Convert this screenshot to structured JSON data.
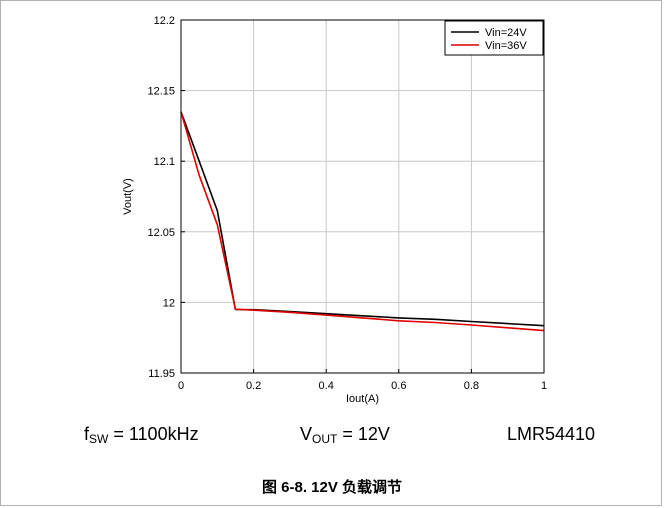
{
  "captions": {
    "fsw": {
      "symbol": "f",
      "sub": "SW",
      "value": " = 1100kHz"
    },
    "vout": {
      "symbol": "V",
      "sub": "OUT",
      "value": " = 12V"
    },
    "part": "LMR54410"
  },
  "figure_title": "图 6-8. 12V 负载调节",
  "chart_data": {
    "type": "line",
    "xlabel": "Iout(A)",
    "ylabel": "Vout(V)",
    "xlim": [
      0,
      1
    ],
    "ylim": [
      11.95,
      12.2
    ],
    "xticks": [
      0,
      0.2,
      0.4,
      0.6,
      0.8,
      1
    ],
    "yticks": [
      11.95,
      12,
      12.05,
      12.1,
      12.15,
      12.2
    ],
    "xtick_labels": [
      "0",
      "0.2",
      "0.4",
      "0.6",
      "0.8",
      "1"
    ],
    "ytick_labels": [
      "11.95",
      "12",
      "12.05",
      "12.1",
      "12.15",
      "12.2"
    ],
    "grid": true,
    "legend": "top-right",
    "series": [
      {
        "name": "Vin=24V",
        "color": "#000000",
        "x": [
          0,
          0.05,
          0.1,
          0.15,
          0.2,
          0.3,
          0.4,
          0.5,
          0.6,
          0.7,
          0.8,
          0.9,
          1.0
        ],
        "y": [
          12.135,
          12.1,
          12.065,
          11.995,
          11.9948,
          11.9935,
          11.992,
          11.9905,
          11.989,
          11.988,
          11.9865,
          11.985,
          11.9835
        ]
      },
      {
        "name": "Vin=36V",
        "color": "#e00000",
        "x": [
          0,
          0.05,
          0.1,
          0.15,
          0.2,
          0.3,
          0.4,
          0.5,
          0.6,
          0.7,
          0.8,
          0.9,
          1.0
        ],
        "y": [
          12.135,
          12.09,
          12.055,
          11.9952,
          11.9945,
          11.993,
          11.991,
          11.989,
          11.987,
          11.9858,
          11.984,
          11.982,
          11.98
        ]
      }
    ]
  }
}
